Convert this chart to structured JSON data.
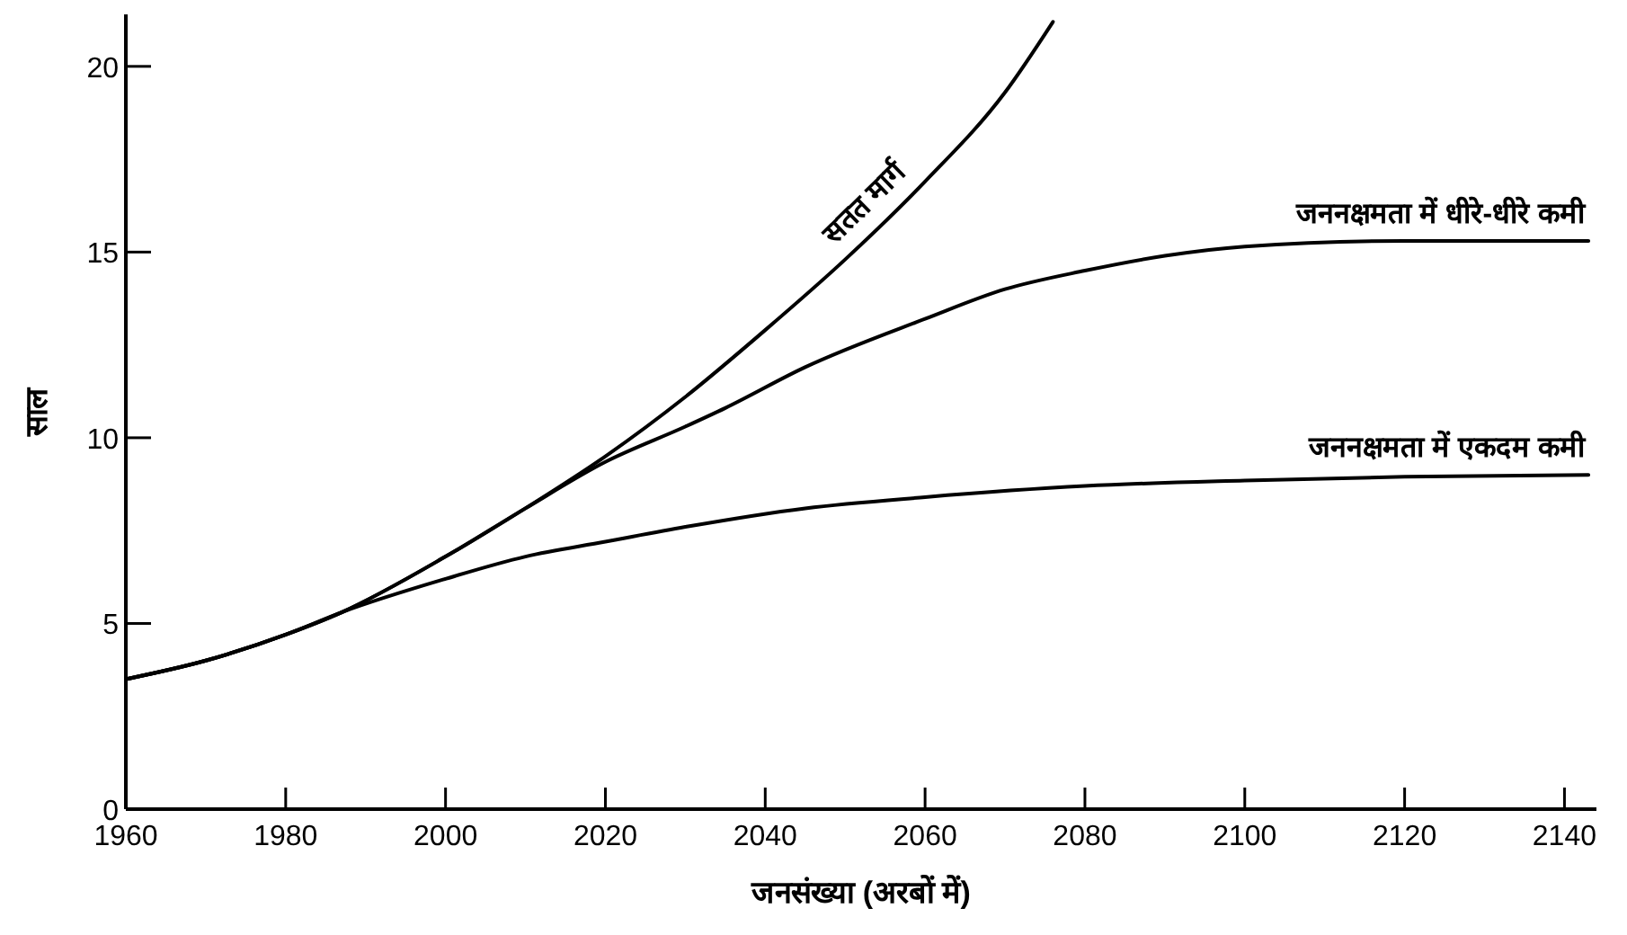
{
  "chart_data": {
    "type": "line",
    "xlabel": "जनसंख्या (अरबों में)",
    "ylabel": "साल",
    "xlim": [
      1960,
      2144
    ],
    "ylim": [
      0,
      21.4
    ],
    "xticks": [
      1960,
      1980,
      2000,
      2020,
      2040,
      2060,
      2080,
      2100,
      2120,
      2140
    ],
    "yticks": [
      0,
      5,
      10,
      15,
      20
    ],
    "grid": false,
    "marker": "none",
    "line_style": "solid",
    "series": [
      {
        "name": "सतत मार्ग",
        "color": "#000000",
        "x": [
          1960,
          1970,
          1980,
          1987,
          2000,
          2010,
          2020,
          2030,
          2040,
          2050,
          2060,
          2070,
          2076
        ],
        "values": [
          3.5,
          4.0,
          4.7,
          5.3,
          6.8,
          8.1,
          9.5,
          11.1,
          12.9,
          14.8,
          16.9,
          19.3,
          21.2
        ]
      },
      {
        "name": "जननक्षमता में धीरे-धीरे कमी",
        "color": "#000000",
        "x": [
          1960,
          1970,
          1980,
          1987,
          2000,
          2010,
          2020,
          2030,
          2035,
          2045,
          2060,
          2070,
          2080,
          2090,
          2100,
          2120,
          2143
        ],
        "values": [
          3.5,
          4.0,
          4.7,
          5.3,
          6.8,
          8.1,
          9.35,
          10.3,
          10.8,
          11.9,
          13.2,
          14.0,
          14.5,
          14.9,
          15.15,
          15.3,
          15.3
        ]
      },
      {
        "name": "जननक्षमता में एकदम कमी",
        "color": "#000000",
        "x": [
          1960,
          1970,
          1980,
          1987,
          2000,
          2010,
          2020,
          2030,
          2045,
          2060,
          2080,
          2100,
          2120,
          2143
        ],
        "values": [
          3.5,
          4.0,
          4.7,
          5.3,
          6.2,
          6.8,
          7.2,
          7.6,
          8.1,
          8.4,
          8.7,
          8.85,
          8.95,
          9.0
        ]
      }
    ]
  }
}
